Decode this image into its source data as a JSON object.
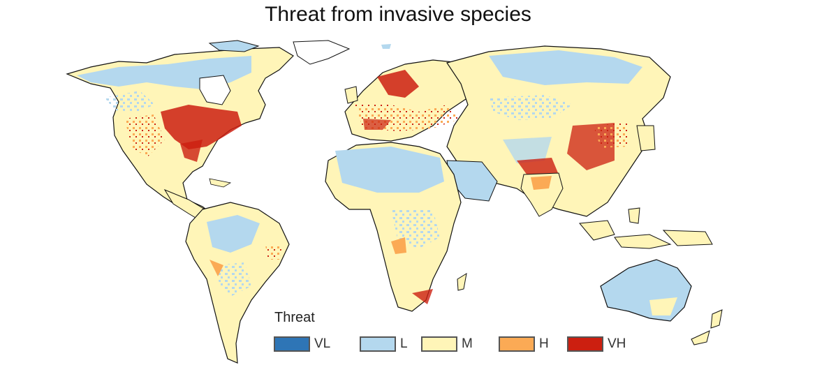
{
  "title": "Threat from invasive species",
  "legend": {
    "title": "Threat",
    "items": [
      {
        "key": "VL",
        "label": "VL",
        "color": "#2e75b6"
      },
      {
        "key": "L",
        "label": "L",
        "color": "#b4d8ee"
      },
      {
        "key": "M",
        "label": "M",
        "color": "#fff5b8"
      },
      {
        "key": "H",
        "label": "H",
        "color": "#fbaa55"
      },
      {
        "key": "VH",
        "label": "VH",
        "color": "#cc1f10"
      }
    ]
  },
  "map": {
    "projection": "world",
    "palette": {
      "land_base": "#fff5b8",
      "low": "#b4d8ee",
      "high": "#fbaa55",
      "very_high": "#cc1f10",
      "coast": "#111111"
    }
  }
}
